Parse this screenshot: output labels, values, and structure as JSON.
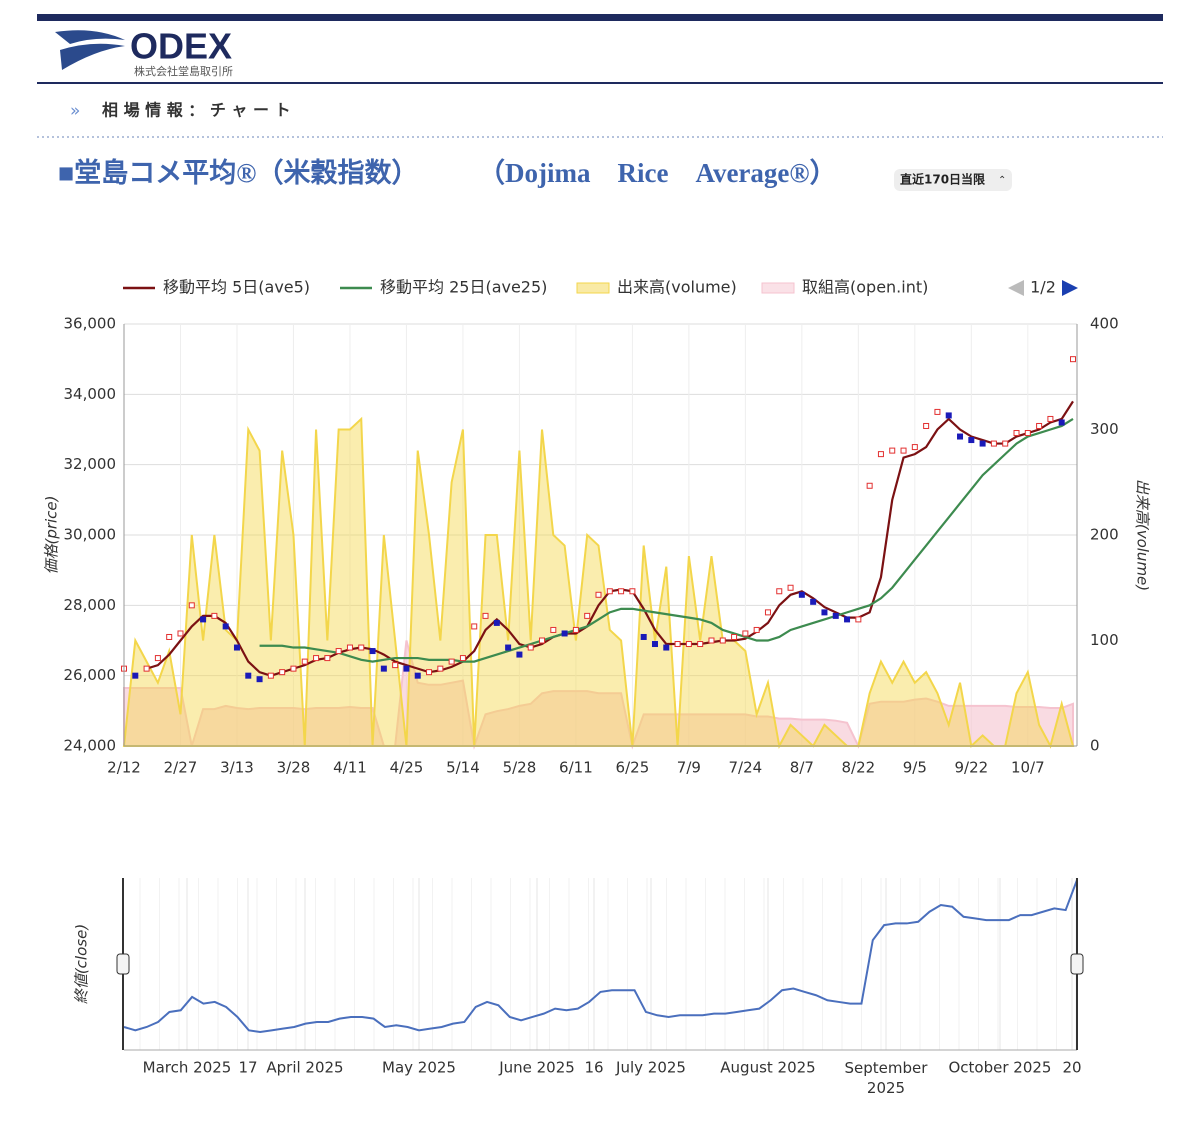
{
  "header": {
    "logo": "ODEX",
    "company": "株式会社堂島取引所",
    "breadcrumb": "相 場 情 報 ： チ ャ ー ト"
  },
  "title": "■堂島コメ平均®（米穀指数）",
  "title_en": "（Dojima　Rice　Average®）",
  "select": "直近170日当限",
  "chart_data": [
    {
      "type": "combo",
      "ylabel": "価格(price)",
      "y2label": "出来高(volume)",
      "pager": "1/2",
      "categories": [
        "2/12",
        null,
        null,
        null,
        null,
        "2/27",
        null,
        null,
        null,
        null,
        "3/13",
        null,
        null,
        null,
        null,
        "3/28",
        null,
        null,
        null,
        null,
        "4/11",
        null,
        null,
        null,
        null,
        "4/25",
        null,
        null,
        null,
        null,
        "5/14",
        null,
        null,
        null,
        null,
        "5/28",
        null,
        null,
        null,
        null,
        "6/11",
        null,
        null,
        null,
        null,
        "6/25",
        null,
        null,
        null,
        null,
        "7/9",
        null,
        null,
        null,
        null,
        "7/24",
        null,
        null,
        null,
        null,
        "8/7",
        null,
        null,
        null,
        null,
        "8/22",
        null,
        null,
        null,
        null,
        "9/5",
        null,
        null,
        null,
        null,
        "9/22",
        null,
        null,
        null,
        null,
        "10/7",
        null,
        null,
        null,
        null
      ],
      "ylim": [
        24000,
        36000
      ],
      "yticks": [
        {
          "value": 24000,
          "label": "24,000"
        },
        {
          "value": 26000,
          "label": "26,000"
        },
        {
          "value": 28000,
          "label": "28,000"
        },
        {
          "value": 30000,
          "label": "30,000"
        },
        {
          "value": 32000,
          "label": "32,000"
        },
        {
          "value": 34000,
          "label": "34,000"
        },
        {
          "value": 36000,
          "label": "36,000"
        }
      ],
      "y2lim": [
        0,
        400
      ],
      "y2ticks": [
        0,
        100,
        200,
        300,
        400
      ],
      "grid": true,
      "series": [
        {
          "name": "移動平均 5日(ave5)",
          "color": "#7b1113",
          "kind": "line",
          "values": [
            null,
            null,
            26200,
            26300,
            26600,
            27000,
            27400,
            27700,
            27700,
            27500,
            27000,
            26400,
            26100,
            26000,
            26100,
            26200,
            26300,
            26450,
            26500,
            26650,
            26750,
            26800,
            26750,
            26600,
            26400,
            26300,
            26200,
            26100,
            26150,
            26250,
            26400,
            26700,
            27300,
            27600,
            27300,
            26900,
            26800,
            26900,
            27100,
            27200,
            27200,
            27400,
            28000,
            28400,
            28450,
            28400,
            27900,
            27300,
            26900,
            26900,
            26900,
            26900,
            26950,
            27000,
            27000,
            27050,
            27250,
            27500,
            28000,
            28300,
            28400,
            28200,
            27950,
            27800,
            27650,
            27650,
            27800,
            28800,
            31000,
            32200,
            32300,
            32500,
            33000,
            33300,
            33000,
            32800,
            32700,
            32600,
            32600,
            32800,
            32900,
            33000,
            33200,
            33300,
            33800
          ]
        },
        {
          "name": "移動平均 25日(ave25)",
          "color": "#3d8b4f",
          "kind": "line",
          "values": [
            null,
            null,
            null,
            null,
            null,
            null,
            null,
            null,
            null,
            null,
            null,
            null,
            26850,
            26850,
            26850,
            26800,
            26800,
            26750,
            26700,
            26650,
            26550,
            26450,
            26400,
            26450,
            26500,
            26500,
            26500,
            26450,
            26450,
            26450,
            26400,
            26400,
            26500,
            26600,
            26700,
            26800,
            26900,
            27000,
            27100,
            27200,
            27300,
            27400,
            27600,
            27800,
            27900,
            27900,
            27850,
            27800,
            27750,
            27700,
            27650,
            27600,
            27500,
            27300,
            27200,
            27100,
            27000,
            27000,
            27100,
            27300,
            27400,
            27500,
            27600,
            27700,
            27800,
            27900,
            28000,
            28200,
            28500,
            28900,
            29300,
            29700,
            30100,
            30500,
            30900,
            31300,
            31700,
            32000,
            32300,
            32600,
            32800,
            32900,
            33000,
            33100,
            33300
          ]
        },
        {
          "name": "出来高(volume)",
          "color": "#f3d64b",
          "kind": "area",
          "axis": "y2",
          "values": [
            0,
            100,
            80,
            60,
            90,
            30,
            200,
            100,
            200,
            110,
            100,
            300,
            280,
            100,
            280,
            200,
            0,
            300,
            100,
            300,
            300,
            310,
            0,
            200,
            100,
            0,
            280,
            200,
            100,
            250,
            300,
            0,
            200,
            200,
            100,
            280,
            100,
            300,
            200,
            190,
            100,
            200,
            190,
            110,
            100,
            0,
            190,
            100,
            170,
            0,
            180,
            100,
            180,
            100,
            100,
            90,
            30,
            60,
            0,
            20,
            10,
            0,
            20,
            10,
            0,
            0,
            50,
            80,
            60,
            80,
            60,
            70,
            50,
            20,
            60,
            0,
            10,
            0,
            0,
            50,
            70,
            20,
            0,
            40,
            0
          ]
        },
        {
          "name": "取組高(open.int)",
          "color": "#f5c3cf",
          "kind": "area",
          "axis": "y2",
          "values": [
            55,
            55,
            55,
            55,
            55,
            55,
            0,
            35,
            35,
            38,
            36,
            35,
            36,
            36,
            36,
            36,
            35,
            36,
            36,
            36,
            37,
            36,
            36,
            0,
            0,
            100,
            60,
            58,
            58,
            60,
            62,
            0,
            30,
            33,
            35,
            38,
            40,
            50,
            52,
            52,
            52,
            52,
            50,
            50,
            50,
            0,
            30,
            30,
            30,
            30,
            30,
            30,
            30,
            30,
            30,
            30,
            28,
            28,
            26,
            26,
            25,
            25,
            25,
            24,
            22,
            0,
            40,
            42,
            42,
            42,
            44,
            45,
            42,
            38,
            38,
            38,
            38,
            38,
            38,
            37,
            37,
            37,
            36,
            36,
            40
          ]
        }
      ]
    },
    {
      "type": "line",
      "ylabel": "終値(close)",
      "color": "#4a6fbd",
      "values": [
        26200,
        26000,
        26200,
        26500,
        27100,
        27200,
        28000,
        27600,
        27700,
        27400,
        26800,
        26000,
        25900,
        26000,
        26100,
        26200,
        26400,
        26500,
        26500,
        26700,
        26800,
        26800,
        26700,
        26200,
        26300,
        26200,
        26000,
        26100,
        26200,
        26400,
        26500,
        27400,
        27700,
        27500,
        26800,
        26600,
        26800,
        27000,
        27300,
        27200,
        27300,
        27700,
        28300,
        28400,
        28400,
        28400,
        27100,
        26900,
        26800,
        26900,
        26900,
        26900,
        27000,
        27000,
        27100,
        27200,
        27300,
        27800,
        28400,
        28500,
        28300,
        28100,
        27800,
        27700,
        27600,
        27600,
        31400,
        32300,
        32400,
        32400,
        32500,
        33100,
        33500,
        33400,
        32800,
        32700,
        32600,
        32600,
        32600,
        32900,
        32900,
        33100,
        33300,
        33200,
        35000
      ],
      "xlabels": [
        "March 2025",
        "17",
        "April 2025",
        "May 2025",
        "June 2025",
        "16",
        "July 2025",
        "August 2025",
        "September 2025",
        "October 2025",
        "20"
      ]
    }
  ]
}
